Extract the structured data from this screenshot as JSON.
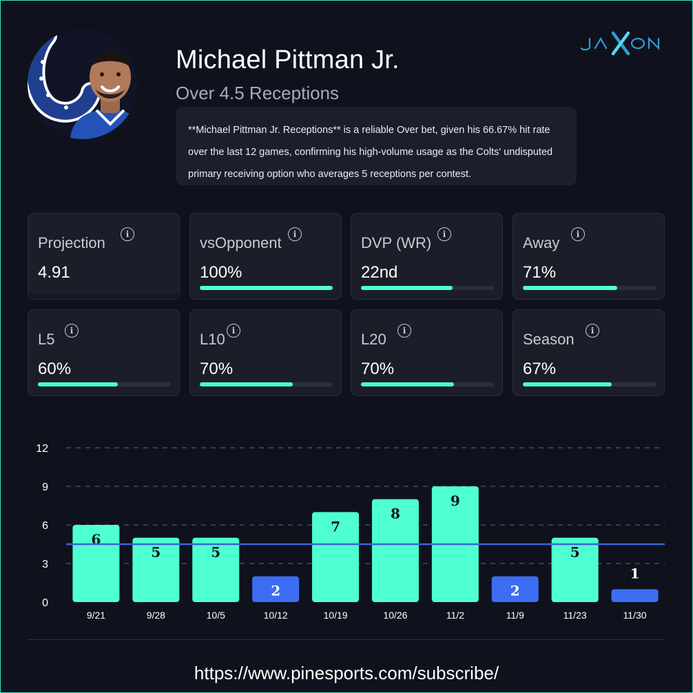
{
  "header": {
    "player_name": "Michael Pittman Jr.",
    "prop": "Over 4.5 Receptions",
    "summary": "**Michael Pittman Jr. Receptions** is a reliable Over bet, given his 66.67% hit rate over the last 12 games, confirming his high-volume usage as the Colts' undisputed primary receiving option who averages 5 receptions per contest.",
    "logo_text": "JAXON",
    "avatar": "player-headshot",
    "team_logo": "colts-horseshoe"
  },
  "colors": {
    "background": "#0f121d",
    "card": "#1b1e29",
    "accent_teal": "#4effd2",
    "under_blue": "#3d6df2",
    "line_blue": "#3b63d9",
    "logo_blue": "#2f9bd7"
  },
  "stat_cards": [
    {
      "label": "Projection",
      "value": "4.91",
      "info_icon": "info-icon",
      "bar": null
    },
    {
      "label": "vsOpponent",
      "value": "100%",
      "info_icon": "info-icon",
      "bar": 1.0
    },
    {
      "label": "DVP (WR)",
      "value": "22nd",
      "info_icon": "info-icon",
      "bar": 0.69
    },
    {
      "label": "Away",
      "value": "71%",
      "info_icon": "info-icon",
      "bar": 0.71
    },
    {
      "label": "L5",
      "value": "60%",
      "info_icon": "info-icon",
      "bar": 0.6
    },
    {
      "label": "L10",
      "value": "70%",
      "info_icon": "info-icon",
      "bar": 0.7
    },
    {
      "label": "L20",
      "value": "70%",
      "info_icon": "info-icon",
      "bar": 0.7
    },
    {
      "label": "Season",
      "value": "67%",
      "info_icon": "info-icon",
      "bar": 0.67
    }
  ],
  "chart_data": {
    "type": "bar",
    "categories": [
      "9/21",
      "9/28",
      "10/5",
      "10/12",
      "10/19",
      "10/26",
      "11/2",
      "11/9",
      "11/23",
      "11/30"
    ],
    "values": [
      6,
      5,
      5,
      2,
      7,
      8,
      9,
      2,
      5,
      1
    ],
    "line_value": 4.5,
    "yticks": [
      "0",
      "3",
      "6",
      "9",
      "12"
    ],
    "ylim": [
      0,
      12
    ],
    "grid": true
  },
  "footer": {
    "url": "https://www.pinesports.com/subscribe/"
  }
}
